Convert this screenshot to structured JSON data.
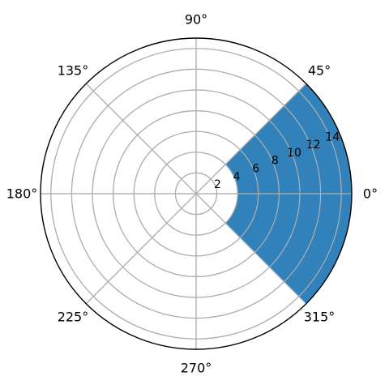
{
  "chart_data": {
    "type": "polar-bar",
    "angle_ticks": [
      "0°",
      "45°",
      "90°",
      "135°",
      "180°",
      "225°",
      "270°",
      "315°"
    ],
    "angle_tick_values_deg": [
      0,
      45,
      90,
      135,
      180,
      225,
      270,
      315
    ],
    "radial_ticks": [
      "2",
      "4",
      "6",
      "8",
      "10",
      "12",
      "14"
    ],
    "radial_tick_values": [
      2,
      4,
      6,
      8,
      10,
      12,
      14
    ],
    "rlim": [
      0,
      15
    ],
    "bar": {
      "theta_start_deg": -45,
      "theta_end_deg": 45,
      "r_inner": 4,
      "r_outer": 15,
      "color": "#1f77b4"
    },
    "grid": true,
    "frame_color": "#000000",
    "grid_color": "#b0b0b0"
  }
}
